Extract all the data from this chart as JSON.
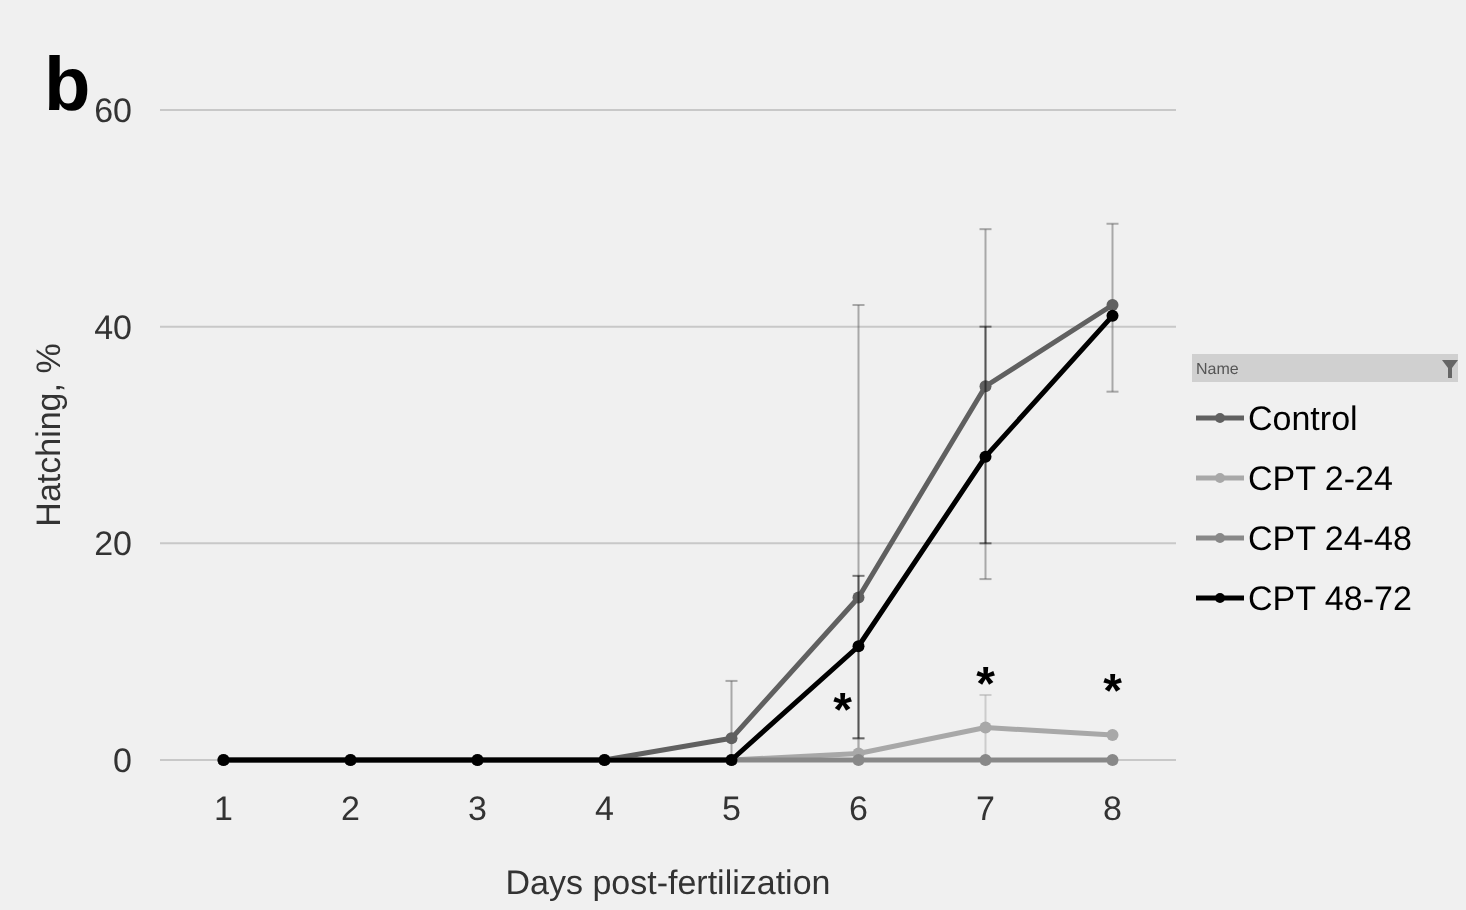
{
  "chart_data": {
    "type": "line",
    "title": "b",
    "xlabel": "Days post-fertilization",
    "ylabel": "Hatching, %",
    "legend_title": "Name",
    "x": [
      1,
      2,
      3,
      4,
      5,
      6,
      7,
      8
    ],
    "series": [
      {
        "name": "Control",
        "color": "#606060",
        "values": [
          0,
          0,
          0,
          0,
          2,
          15,
          34.5,
          42
        ],
        "errors": [
          null,
          null,
          null,
          null,
          [
            0,
            7.3
          ],
          [
            0,
            42
          ],
          [
            16.7,
            49
          ],
          [
            34,
            49.5
          ]
        ]
      },
      {
        "name": "CPT 2-24",
        "color": "#a8a8a8",
        "values": [
          0,
          0,
          0,
          0,
          0,
          0.6,
          3,
          2.3
        ],
        "errors": [
          null,
          null,
          null,
          null,
          null,
          [
            0,
            2
          ],
          [
            0,
            6
          ],
          null
        ]
      },
      {
        "name": "CPT 24-48",
        "color": "#888888",
        "values": [
          0,
          0,
          0,
          0,
          0,
          0,
          0,
          0
        ]
      },
      {
        "name": "CPT 48-72",
        "color": "#000000",
        "values": [
          0,
          0,
          0,
          0,
          0,
          10.5,
          28,
          41
        ],
        "errors": [
          null,
          null,
          null,
          null,
          null,
          [
            2,
            17
          ],
          [
            20,
            40
          ],
          null
        ]
      }
    ],
    "annotations": [
      {
        "text": "*",
        "x": 6,
        "y": 0.6
      },
      {
        "text": "*",
        "x": 7,
        "y": 3
      },
      {
        "text": "*",
        "x": 8,
        "y": 2.3
      }
    ],
    "xlim": [
      0.5,
      8.5
    ],
    "ylim": [
      0,
      60
    ],
    "xticks": [
      1,
      2,
      3,
      4,
      5,
      6,
      7,
      8
    ],
    "yticks": [
      0,
      20,
      40,
      60
    ],
    "grid": "y",
    "legend": "right",
    "marker": "circle",
    "line_style": "solid"
  }
}
